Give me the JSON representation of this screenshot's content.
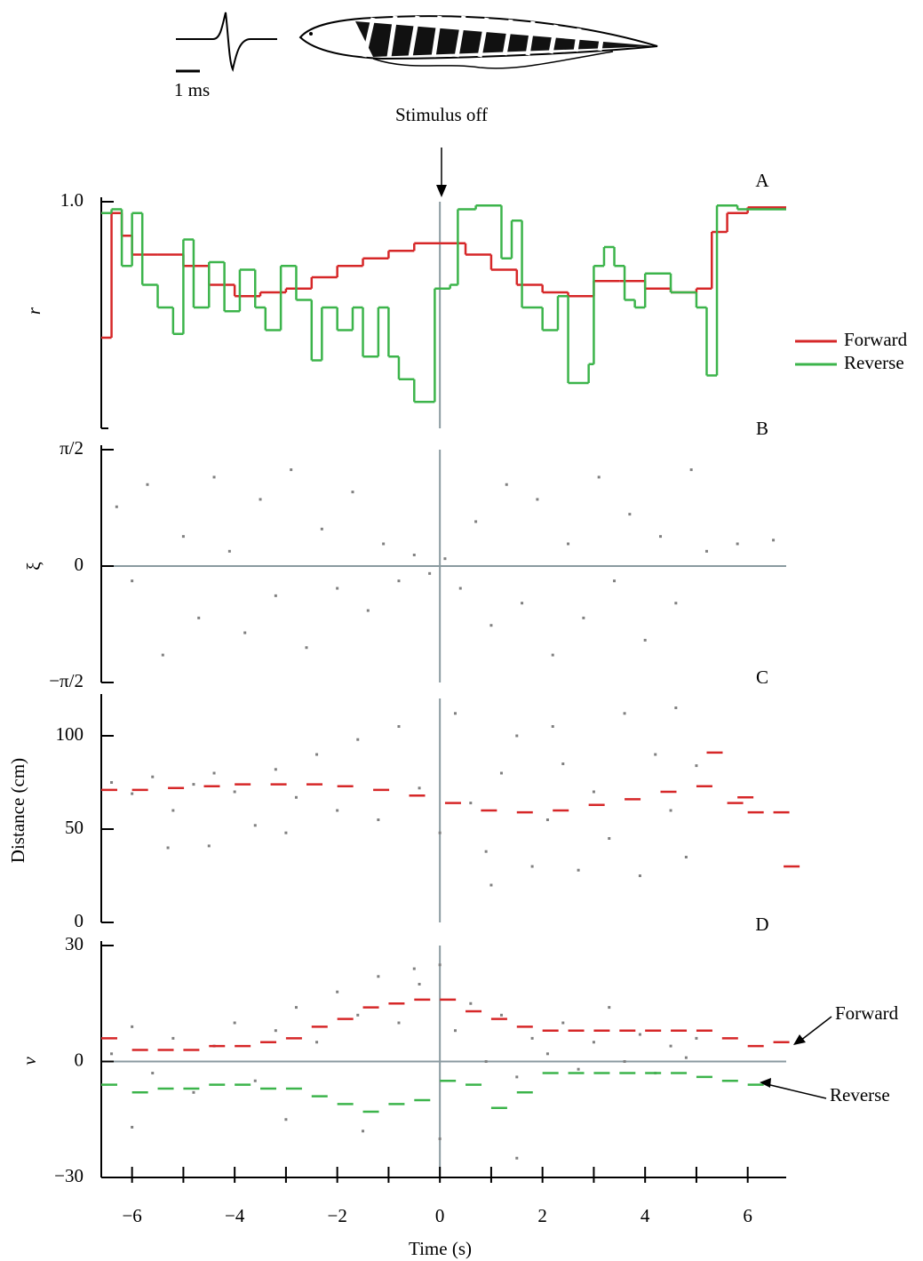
{
  "header": {
    "scale_label": "1 ms",
    "stimulus": "Stimulus off"
  },
  "chart_data": [
    {
      "type": "line",
      "step": true,
      "panel_label": "A",
      "y_label": "r",
      "xlim": [
        -6.6,
        6.75
      ],
      "ylim": [
        0.4,
        1.0
      ],
      "yticks": [
        {
          "value": 1,
          "label": "1.0"
        }
      ],
      "legend": "right",
      "series": [
        {
          "name": "Forward",
          "color": "#d62728",
          "x": [
            -6.6,
            -6.4,
            -6.2,
            -6,
            -5.5,
            -5,
            -4.5,
            -4,
            -3.5,
            -3,
            -2.5,
            -2,
            -1.5,
            -1,
            -0.5,
            0,
            0.5,
            1,
            1.5,
            2,
            2.5,
            3,
            3.5,
            4,
            4.5,
            5,
            5.3,
            5.6,
            6
          ],
          "values": [
            0.64,
            0.97,
            0.91,
            0.86,
            0.86,
            0.83,
            0.78,
            0.75,
            0.76,
            0.77,
            0.8,
            0.83,
            0.85,
            0.87,
            0.89,
            0.89,
            0.86,
            0.82,
            0.78,
            0.76,
            0.75,
            0.79,
            0.79,
            0.77,
            0.76,
            0.77,
            0.92,
            0.97,
            0.985
          ]
        },
        {
          "name": "Reverse",
          "color": "#3cb44b",
          "x": [
            -6.6,
            -6.4,
            -6.2,
            -6,
            -5.8,
            -5.5,
            -5.2,
            -5,
            -4.8,
            -4.5,
            -4.2,
            -3.9,
            -3.6,
            -3.4,
            -3.1,
            -2.8,
            -2.5,
            -2.3,
            -2,
            -1.7,
            -1.5,
            -1.2,
            -1,
            -0.8,
            -0.5,
            -0.1,
            0.2,
            0.35,
            0.7,
            1.2,
            1.4,
            1.6,
            2,
            2.3,
            2.5,
            2.9,
            3,
            3.2,
            3.4,
            3.6,
            3.8,
            4,
            4.5,
            5,
            5.2,
            5.4,
            5.8
          ],
          "values": [
            0.97,
            0.98,
            0.83,
            0.97,
            0.78,
            0.72,
            0.65,
            0.9,
            0.72,
            0.84,
            0.71,
            0.82,
            0.72,
            0.66,
            0.83,
            0.74,
            0.58,
            0.72,
            0.66,
            0.72,
            0.59,
            0.72,
            0.59,
            0.53,
            0.47,
            0.77,
            0.78,
            0.98,
            0.99,
            0.85,
            0.95,
            0.72,
            0.66,
            0.75,
            0.52,
            0.57,
            0.83,
            0.88,
            0.83,
            0.74,
            0.72,
            0.81,
            0.76,
            0.72,
            0.54,
            0.99,
            0.98
          ]
        }
      ]
    },
    {
      "type": "scatter",
      "panel_label": "B",
      "y_label": "ξ",
      "zero_line": true,
      "color": "#808080",
      "xlim": [
        -6.6,
        6.75
      ],
      "ylim": [
        -1.5708,
        1.5708
      ],
      "yticks": [
        {
          "value": 1.5708,
          "label": "π/2"
        },
        0,
        {
          "value": -1.5708,
          "label": "−π/2"
        }
      ],
      "points": [
        [
          -6.3,
          0.8
        ],
        [
          -6,
          -0.2
        ],
        [
          -5.7,
          1.1
        ],
        [
          -5.4,
          -1.2
        ],
        [
          -5,
          0.4
        ],
        [
          -4.7,
          -0.7
        ],
        [
          -4.4,
          1.2
        ],
        [
          -4.1,
          0.2
        ],
        [
          -3.8,
          -0.9
        ],
        [
          -3.5,
          0.9
        ],
        [
          -3.2,
          -0.4
        ],
        [
          -2.9,
          1.3
        ],
        [
          -2.6,
          -1.1
        ],
        [
          -2.3,
          0.5
        ],
        [
          -2,
          -0.3
        ],
        [
          -1.7,
          1.0
        ],
        [
          -1.4,
          -0.6
        ],
        [
          -1.1,
          0.3
        ],
        [
          -0.8,
          -0.2
        ],
        [
          -0.5,
          0.15
        ],
        [
          -0.2,
          -0.1
        ],
        [
          0.1,
          0.1
        ],
        [
          0.4,
          -0.3
        ],
        [
          0.7,
          0.6
        ],
        [
          1,
          -0.8
        ],
        [
          1.3,
          1.1
        ],
        [
          1.6,
          -0.5
        ],
        [
          1.9,
          0.9
        ],
        [
          2.2,
          -1.2
        ],
        [
          2.5,
          0.3
        ],
        [
          2.8,
          -0.7
        ],
        [
          3.1,
          1.2
        ],
        [
          3.4,
          -0.2
        ],
        [
          3.7,
          0.7
        ],
        [
          4,
          -1.0
        ],
        [
          4.3,
          0.4
        ],
        [
          4.6,
          -0.5
        ],
        [
          4.9,
          1.3
        ],
        [
          5.2,
          0.2
        ],
        [
          5.8,
          0.3
        ],
        [
          6.5,
          0.35
        ]
      ]
    },
    {
      "type": "scatter",
      "panel_label": "C",
      "y_label": "Distance (cm)",
      "color": "#808080",
      "xlim": [
        -6.6,
        6.75
      ],
      "ylim": [
        0,
        120
      ],
      "yticks": [
        100,
        50,
        0
      ],
      "points": [
        [
          -6.4,
          75
        ],
        [
          -6,
          69
        ],
        [
          -5.6,
          78
        ],
        [
          -5.2,
          60
        ],
        [
          -4.8,
          74
        ],
        [
          -4.4,
          80
        ],
        [
          -4,
          70
        ],
        [
          -3.6,
          52
        ],
        [
          -3.2,
          82
        ],
        [
          -2.8,
          67
        ],
        [
          -2.4,
          90
        ],
        [
          -2,
          60
        ],
        [
          -1.6,
          98
        ],
        [
          -1.2,
          55
        ],
        [
          -0.8,
          105
        ],
        [
          -0.4,
          72
        ],
        [
          0,
          48
        ],
        [
          0.3,
          112
        ],
        [
          0.6,
          64
        ],
        [
          0.9,
          38
        ],
        [
          1.2,
          80
        ],
        [
          1.5,
          100
        ],
        [
          1.8,
          30
        ],
        [
          2.1,
          55
        ],
        [
          2.4,
          85
        ],
        [
          2.7,
          28
        ],
        [
          3,
          70
        ],
        [
          3.3,
          45
        ],
        [
          3.6,
          112
        ],
        [
          3.9,
          25
        ],
        [
          4.2,
          90
        ],
        [
          4.5,
          60
        ],
        [
          4.8,
          35
        ],
        [
          5,
          84
        ],
        [
          -5.3,
          40
        ],
        [
          -4.5,
          41
        ],
        [
          -3,
          48
        ],
        [
          1.0,
          20
        ],
        [
          2.2,
          105
        ],
        [
          4.6,
          115
        ]
      ],
      "series": [
        {
          "color": "#d62728",
          "x": [
            -6.6,
            -6,
            -5.3,
            -4.6,
            -4,
            -3.3,
            -2.6,
            -2,
            -1.3,
            -0.6,
            0.1,
            0.8,
            1.5,
            2.2,
            2.9,
            3.6,
            4.3,
            5,
            5.2,
            5.6,
            5.8,
            6,
            6.5,
            6.7
          ],
          "values": [
            71,
            71,
            72,
            73,
            74,
            74,
            74,
            73,
            71,
            68,
            64,
            60,
            59,
            60,
            63,
            66,
            70,
            73,
            91,
            64,
            67,
            59,
            59,
            30
          ]
        }
      ]
    },
    {
      "type": "scatter",
      "panel_label": "D",
      "y_label": "ν",
      "zero_line": true,
      "color": "#808080",
      "xlim": [
        -6.6,
        6.75
      ],
      "ylim": [
        -30,
        30
      ],
      "yticks": [
        30,
        0,
        {
          "value": -30,
          "label": "−30"
        }
      ],
      "xlabel": "Time (s)",
      "xticks": [
        {
          "value": -6,
          "label": "−6"
        },
        {
          "value": -4,
          "label": "−4"
        },
        {
          "value": -2,
          "label": "−2"
        },
        0,
        2,
        4,
        6
      ],
      "xminorticks": [
        -5,
        -3,
        -1,
        1,
        3,
        5
      ],
      "points": [
        [
          -6.4,
          2
        ],
        [
          -6,
          9
        ],
        [
          -5.6,
          -3
        ],
        [
          -5.2,
          6
        ],
        [
          -4.8,
          -8
        ],
        [
          -4.4,
          4
        ],
        [
          -4,
          10
        ],
        [
          -3.6,
          -5
        ],
        [
          -3.2,
          8
        ],
        [
          -2.8,
          14
        ],
        [
          -2.4,
          5
        ],
        [
          -2,
          18
        ],
        [
          -1.6,
          12
        ],
        [
          -1.2,
          22
        ],
        [
          -0.8,
          10
        ],
        [
          -0.4,
          20
        ],
        [
          0,
          25
        ],
        [
          0.3,
          8
        ],
        [
          0.6,
          15
        ],
        [
          0.9,
          0
        ],
        [
          1.2,
          12
        ],
        [
          1.5,
          -4
        ],
        [
          1.8,
          6
        ],
        [
          2.1,
          2
        ],
        [
          2.4,
          10
        ],
        [
          2.7,
          -2
        ],
        [
          3,
          5
        ],
        [
          3.3,
          14
        ],
        [
          3.6,
          0
        ],
        [
          3.9,
          7
        ],
        [
          4.2,
          -3
        ],
        [
          4.5,
          4
        ],
        [
          4.8,
          1
        ],
        [
          5,
          6
        ],
        [
          -6,
          -17
        ],
        [
          -3,
          -15
        ],
        [
          -1.5,
          -18
        ],
        [
          0,
          -20
        ],
        [
          1.5,
          -25
        ],
        [
          -0.5,
          24
        ]
      ],
      "series": [
        {
          "name": "Forward",
          "color": "#d62728",
          "x": [
            -6.6,
            -6,
            -5.5,
            -5,
            -4.5,
            -4,
            -3.5,
            -3,
            -2.5,
            -2,
            -1.5,
            -1,
            -0.5,
            0,
            0.5,
            1,
            1.5,
            2,
            2.5,
            3,
            3.5,
            4,
            4.5,
            5,
            5.5,
            6,
            6.5
          ],
          "values": [
            6,
            3,
            3,
            3,
            4,
            4,
            5,
            6,
            9,
            11,
            14,
            15,
            16,
            16,
            13,
            11,
            9,
            8,
            8,
            8,
            8,
            8,
            8,
            8,
            6,
            4,
            5
          ]
        },
        {
          "name": "Reverse",
          "color": "#3cb44b",
          "x": [
            -6.6,
            -6,
            -5.5,
            -5,
            -4.5,
            -4,
            -3.5,
            -3,
            -2.5,
            -2,
            -1.5,
            -1,
            -0.5,
            0,
            0.5,
            1,
            1.5,
            2,
            2.5,
            3,
            3.5,
            4,
            4.5,
            5,
            5.5,
            6
          ],
          "values": [
            -6,
            -8,
            -7,
            -7,
            -6,
            -6,
            -7,
            -7,
            -9,
            -11,
            -13,
            -11,
            -10,
            -5,
            -6,
            -12,
            -8,
            -3,
            -3,
            -3,
            -3,
            -3,
            -3,
            -4,
            -5,
            -6
          ]
        }
      ]
    }
  ]
}
